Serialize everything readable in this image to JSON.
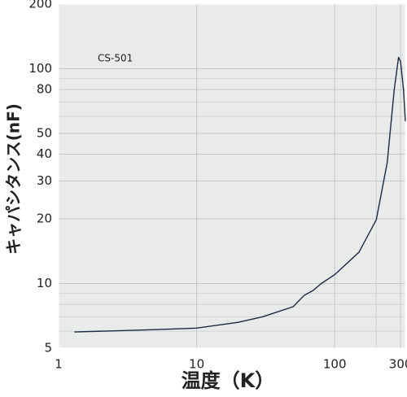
{
  "chart_data": {
    "type": "line",
    "x_label": "温度（K）",
    "y_label": "キャパシタンス(nF)",
    "annotation": "CS-501",
    "x_log": true,
    "y_log": true,
    "grid": true,
    "color": "#1d2a40",
    "xlim": [
      1,
      325
    ],
    "ylim": [
      5,
      200
    ],
    "xticks": [
      1,
      10,
      100,
      300
    ],
    "x_minor_grid": [
      200
    ],
    "yticks": [
      5,
      10,
      20,
      30,
      40,
      50,
      80,
      100,
      200
    ],
    "y_minor_grid": [
      6,
      7,
      8,
      9,
      60,
      70,
      90
    ],
    "x": [
      1.3,
      5,
      10,
      20,
      30,
      50,
      60,
      70,
      80,
      100,
      150,
      200,
      240,
      270,
      290,
      300,
      315,
      325
    ],
    "values": [
      5.95,
      6.1,
      6.2,
      6.6,
      7.0,
      7.8,
      8.8,
      9.3,
      10.0,
      11.0,
      14.0,
      19.8,
      36.5,
      80,
      113,
      108,
      80,
      57
    ]
  }
}
